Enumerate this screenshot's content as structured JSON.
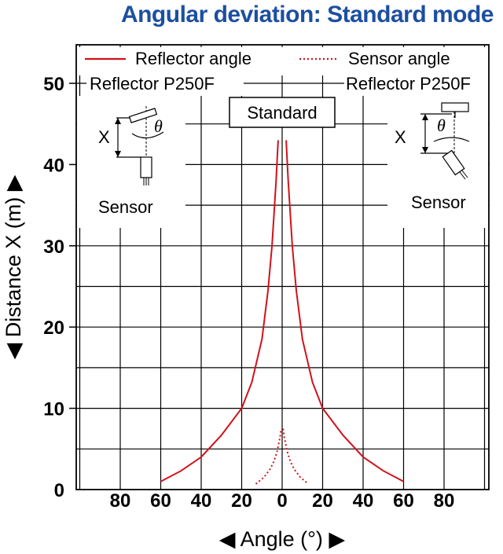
{
  "chart_data": {
    "type": "line",
    "title": "Angular deviation: Standard mode",
    "xlabel": "◀ Angle (°) ▶",
    "ylabel": "◀ Distance X (m) ▶",
    "xlim": [
      -100,
      100
    ],
    "ylim": [
      0,
      55
    ],
    "x_ticks": [
      80,
      60,
      40,
      20,
      0,
      20,
      40,
      60,
      80
    ],
    "y_ticks": [
      0,
      10,
      20,
      30,
      40,
      50
    ],
    "grid": true,
    "legend_placement": "top",
    "series": [
      {
        "name": "Reflector angle",
        "style": "solid",
        "color": "#d0121b",
        "x": [
          -60,
          -50,
          -40,
          -30,
          -20,
          -15,
          -10,
          -7,
          -5,
          -3,
          -2
        ],
        "y": [
          1,
          2.3,
          4,
          6.7,
          10,
          13.2,
          18.5,
          24.5,
          30,
          38,
          43
        ],
        "x_right": [
          2,
          3,
          5,
          7,
          10,
          15,
          20,
          30,
          40,
          50,
          60
        ],
        "y_right": [
          43,
          38,
          30,
          24.5,
          18.5,
          13.2,
          10,
          6.7,
          4,
          2.3,
          1
        ]
      },
      {
        "name": "Sensor angle",
        "style": "dotted",
        "color": "#d0121b",
        "x": [
          -13,
          -9,
          -6,
          -4,
          -2.5,
          -1,
          -0.5
        ],
        "y": [
          0.7,
          1.5,
          2.5,
          3.5,
          4.7,
          6.5,
          7.5
        ],
        "x_right": [
          0.5,
          1,
          2.5,
          4,
          6,
          9,
          13
        ],
        "y_right": [
          7.5,
          6.5,
          4.7,
          3.5,
          2.5,
          1.5,
          0.7
        ]
      }
    ],
    "annotations": {
      "reflector_left": "Reflector P250F",
      "reflector_right": "Reflector P250F",
      "mode_box": "Standard",
      "sensor_left": "Sensor",
      "sensor_right": "Sensor",
      "x_mark": "X",
      "theta": "θ"
    }
  }
}
